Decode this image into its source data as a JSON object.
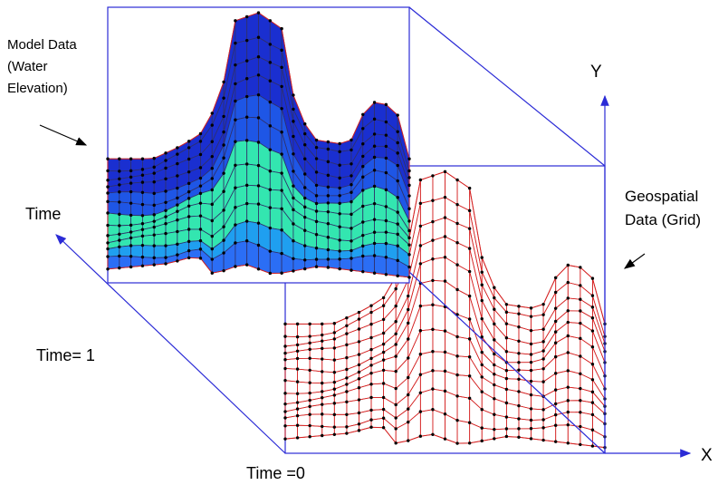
{
  "labels": {
    "model_data": [
      "Model Data",
      "(Water",
      "Elevation)"
    ],
    "geospatial": [
      "Geospatial",
      "Data (Grid)"
    ],
    "time_axis": "Time",
    "time_1": "Time= 1",
    "time_0": "Time =0",
    "y_axis": "Y",
    "x_axis": "X"
  }
}
